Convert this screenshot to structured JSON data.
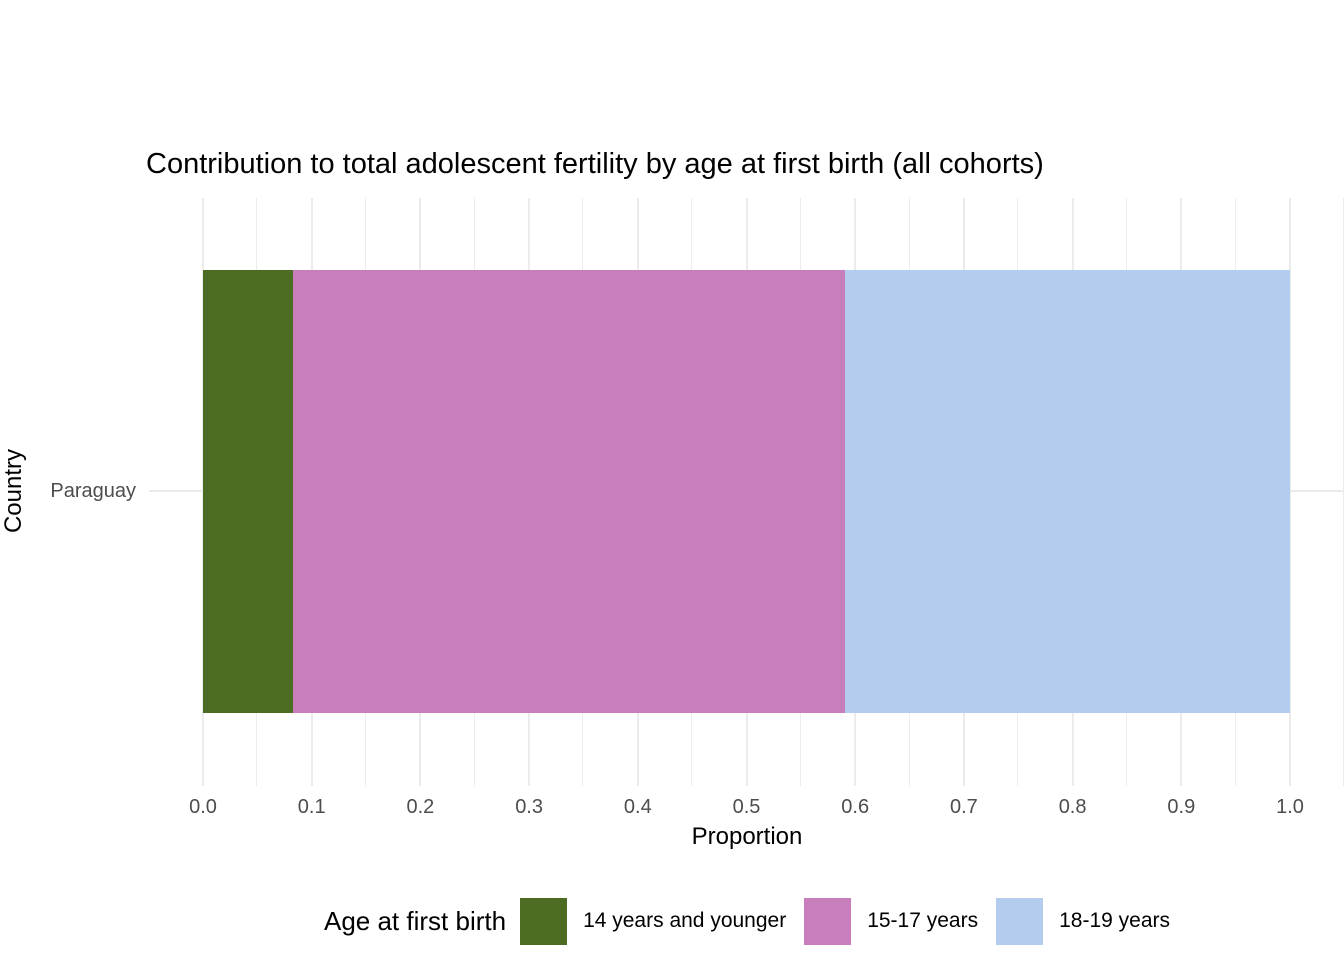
{
  "chart_data": {
    "type": "bar",
    "orientation": "horizontal",
    "stacked": true,
    "title": "Contribution to total adolescent fertility by age at first birth (all cohorts)",
    "xlabel": "Proportion",
    "ylabel": "Country",
    "categories": [
      "Paraguay"
    ],
    "series": [
      {
        "name": "14 years and younger",
        "values": [
          0.083
        ],
        "color": "#4c6b23"
      },
      {
        "name": "15-17 years",
        "values": [
          0.508
        ],
        "color": "#c87dbc"
      },
      {
        "name": "18-19 years",
        "values": [
          0.409
        ],
        "color": "#b4cdee"
      }
    ],
    "xlim": [
      0,
      1
    ],
    "x_ticks": [
      0,
      0.1,
      0.2,
      0.3,
      0.4,
      0.5,
      0.6,
      0.7,
      0.8,
      0.9,
      1
    ],
    "x_tick_labels": [
      "0.0",
      "0.1",
      "0.2",
      "0.3",
      "0.4",
      "0.5",
      "0.6",
      "0.7",
      "0.8",
      "0.9",
      "1.0"
    ],
    "grid": true,
    "legend_position": "bottom"
  },
  "legend": {
    "title": "Age at first birth"
  },
  "style": {
    "background": "#ffffff",
    "grid_major_color": "#ebebeb",
    "grid_minor_color": "#ededed",
    "axis_text_color": "#4d4d4d",
    "title_text_color": "#000000"
  }
}
